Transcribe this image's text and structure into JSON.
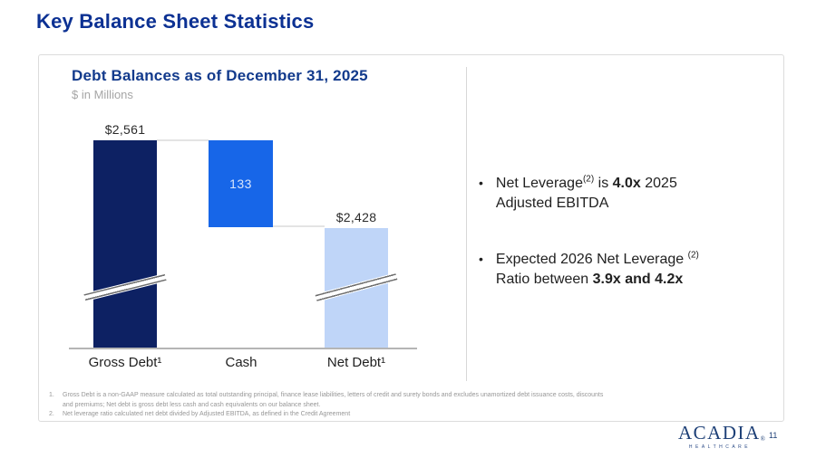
{
  "page": {
    "title": "Key Balance Sheet Statistics",
    "page_number": "11"
  },
  "chart_data": {
    "type": "bar",
    "subtype": "waterfall",
    "title": "Debt Balances as of December 31, 2025",
    "units": "$ in Millions",
    "categories": [
      "Gross Debt¹",
      "Cash",
      "Net Debt¹"
    ],
    "values": [
      2561,
      133,
      2428
    ],
    "value_labels": [
      "$2,561",
      "133",
      "$2,428"
    ],
    "bar_colors": [
      "#0d2163",
      "#1766e8",
      "#bfd5f8"
    ],
    "layout_notes": "y-axis truncated; diagonal break marks on Gross Debt and Net Debt bars; gray connector lines between bar tops; no gridlines; no y-axis",
    "bullet_char": "•"
  },
  "bullets": {
    "one": {
      "pre": "Net Leverage",
      "sup": "(2)",
      "mid": " is ",
      "bold": "4.0x",
      "post": " 2025 Adjusted EBITDA"
    },
    "two": {
      "pre": "Expected 2026 Net Leverage ",
      "sup": "(2)",
      "mid": " Ratio between ",
      "bold": "3.9x and 4.2x",
      "post": ""
    }
  },
  "footnotes": {
    "items": [
      {
        "num": "1.",
        "text": "Gross Debt is a non-GAAP measure calculated as total outstanding principal, finance lease liabilities, letters of credit and surety bonds and excludes unamortized debt issuance costs, discounts and premiums; Net debt is gross debt less cash and cash equivalents on our balance sheet."
      },
      {
        "num": "2.",
        "text": "Net leverage ratio calculated net debt divided by Adjusted EBITDA, as defined in the Credit Agreement"
      }
    ]
  },
  "logo": {
    "name": "ACADIA",
    "reg": "®",
    "tagline": "HEALTHCARE"
  },
  "colors": {
    "accent_title": "#0c3193",
    "chart_title": "#123a8c",
    "navy_bar": "#0d2163",
    "blue_bar": "#1766e8",
    "light_blue_bar": "#bfd5f8",
    "card_border": "#dcdcdc",
    "logo_navy": "#1e4077"
  }
}
